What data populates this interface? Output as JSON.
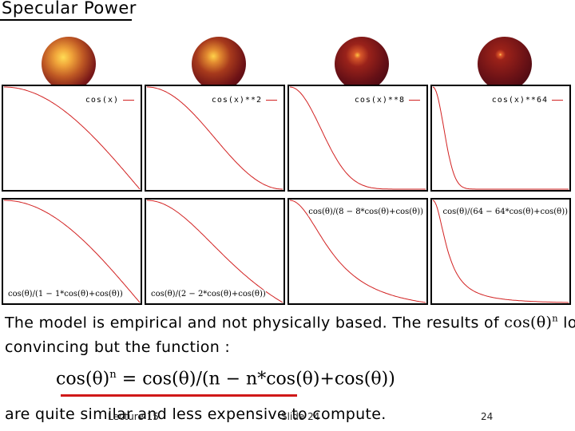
{
  "title": "Specular Power",
  "plots": [
    {
      "legend": "cos(x)",
      "exponent": 1
    },
    {
      "legend": "cos(x)**2",
      "exponent": 2
    },
    {
      "legend": "cos(x)**8",
      "exponent": 8
    },
    {
      "legend": "cos(x)**64",
      "exponent": 64
    }
  ],
  "approx_plots": [
    {
      "label": "cos(θ)/(1 − 1*cos(θ)+cos(θ))",
      "exponent": 1
    },
    {
      "label": "cos(θ)/(2 − 2*cos(θ)+cos(θ))",
      "exponent": 2
    },
    {
      "label": "cos(θ)/(8 − 8*cos(θ)+cos(θ))",
      "exponent": 8
    },
    {
      "label": "cos(θ)/(64 − 64*cos(θ)+cos(θ))",
      "exponent": 64
    }
  ],
  "text": {
    "line1_a": "The model is empirical and not physically based.  The results of ",
    "line1_cos": "cos(θ)",
    "line1_sup": "n",
    "line1_b": " look",
    "line2": "convincing but the function :",
    "formula_lhs": "cos(θ)",
    "formula_sup": "n",
    "formula_rhs": " =  cos(θ)/(n − n*cos(θ)+cos(θ))",
    "line3": "are quite similar and less expensive to compute."
  },
  "footer": {
    "lecture": "Lecture 15",
    "slide": "Slide 24",
    "page": "24"
  },
  "colors": {
    "curve": "#d22222",
    "underline": "#d01818",
    "sphere_dark": "#4a0712",
    "sphere_mid": "#8a1a1a"
  }
}
